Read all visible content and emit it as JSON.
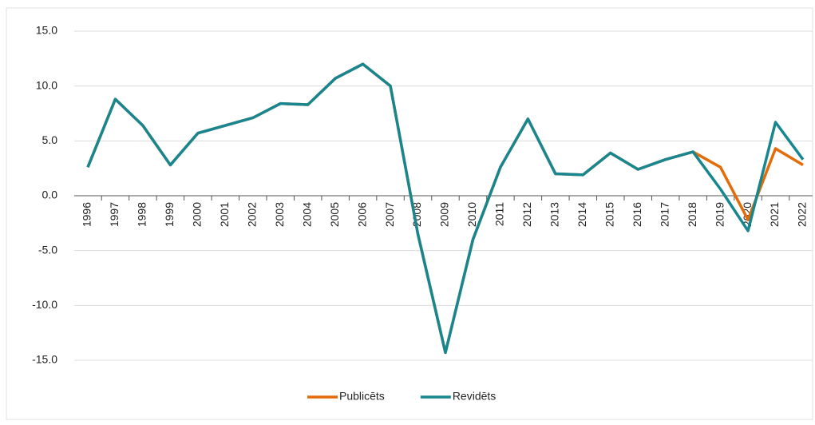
{
  "chart_data": {
    "type": "line",
    "categories": [
      "1996",
      "1997",
      "1998",
      "1999",
      "2000",
      "2001",
      "2002",
      "2003",
      "2004",
      "2005",
      "2006",
      "2007",
      "2008",
      "2009",
      "2010",
      "2011",
      "2012",
      "2013",
      "2014",
      "2015",
      "2016",
      "2017",
      "2018",
      "2019",
      "2020",
      "2021",
      "2022"
    ],
    "series": [
      {
        "name": "Publicēts",
        "color": "#e36c09",
        "values": [
          2.6,
          8.8,
          6.4,
          2.8,
          5.7,
          6.4,
          7.1,
          8.4,
          8.3,
          10.7,
          12.0,
          10.0,
          -3.5,
          -14.3,
          -4.0,
          2.6,
          7.0,
          2.0,
          1.9,
          3.9,
          2.4,
          3.3,
          4.0,
          2.6,
          -2.2,
          4.3,
          2.8
        ]
      },
      {
        "name": "Revidēts",
        "color": "#17868f",
        "values": [
          2.6,
          8.8,
          6.4,
          2.8,
          5.7,
          6.4,
          7.1,
          8.4,
          8.3,
          10.7,
          12.0,
          10.0,
          -3.5,
          -14.3,
          -4.0,
          2.6,
          7.0,
          2.0,
          1.9,
          3.9,
          2.4,
          3.3,
          4.0,
          0.6,
          -3.2,
          6.7,
          3.3
        ]
      }
    ],
    "ylim": [
      -15,
      15
    ],
    "yticks": [
      {
        "value": -15,
        "label": "-15.0"
      },
      {
        "value": -10,
        "label": "-10.0"
      },
      {
        "value": -5,
        "label": "-5.0"
      },
      {
        "value": 0,
        "label": "0.0"
      },
      {
        "value": 5,
        "label": "5.0"
      },
      {
        "value": 10,
        "label": "10.0"
      },
      {
        "value": 15,
        "label": "15.0"
      }
    ],
    "grid": true,
    "legend": "bottom"
  }
}
